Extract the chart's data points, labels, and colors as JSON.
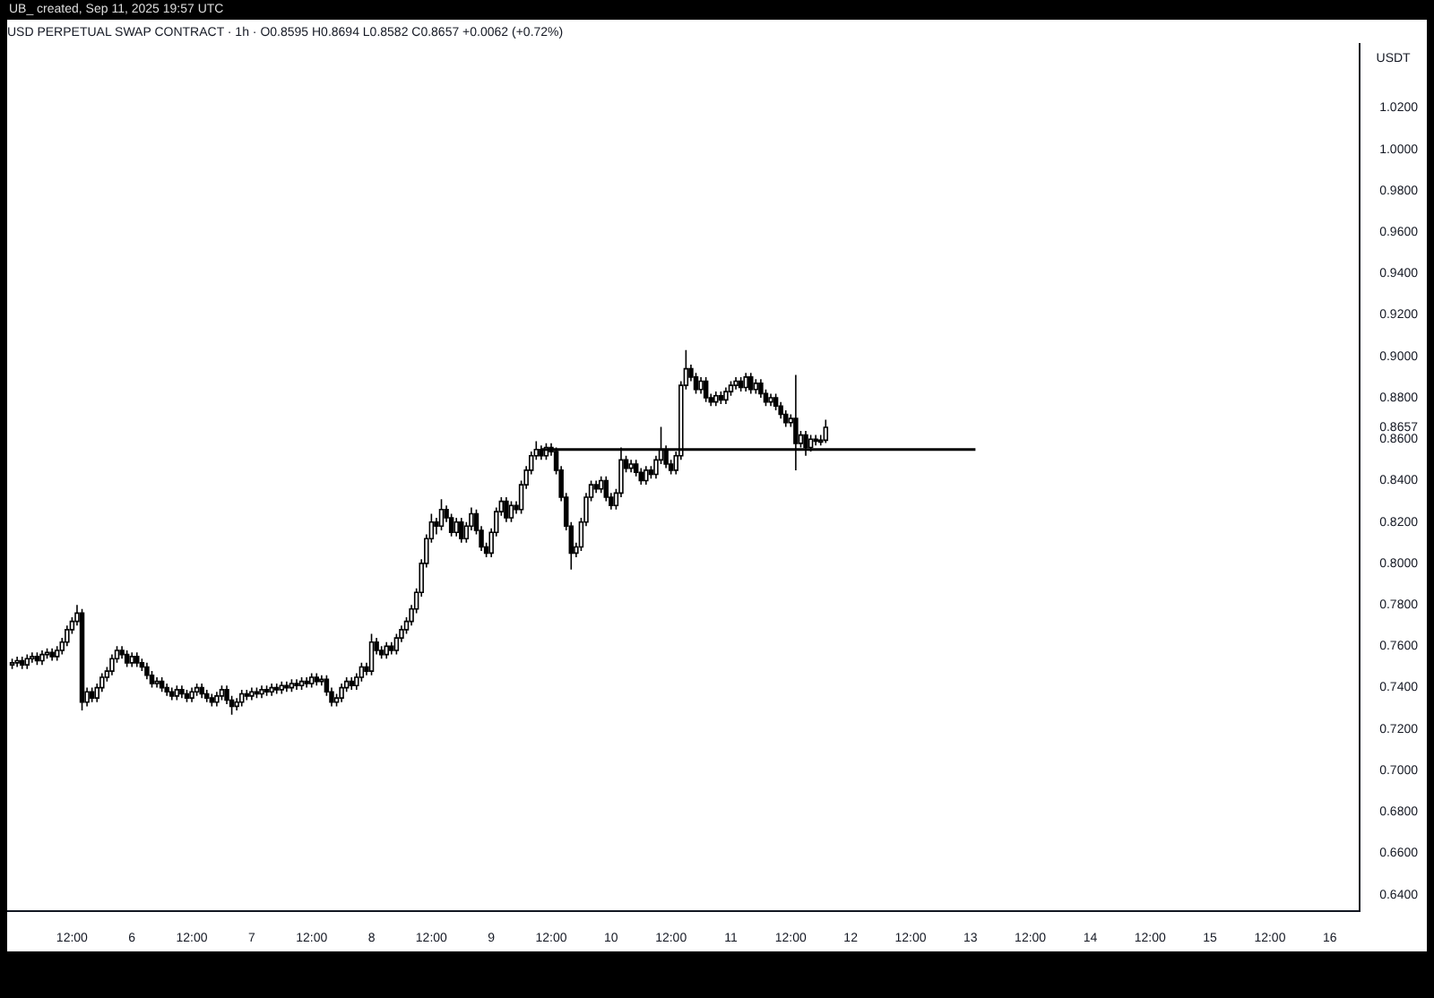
{
  "chart_data": {
    "type": "candlestick",
    "title": "USD PERPETUAL SWAP CONTRACT · 1h · O0.8595 H0.8694 L0.8582 C0.8657 +0.0062 (+0.72%)",
    "ylabel": "USDT",
    "annotations": [
      "UB_ created, Sep 11, 2025 19:57 UTC"
    ],
    "color": "#000000",
    "grid": false,
    "legend": false,
    "x": [
      "2025-09-05T00:00",
      "2025-09-05T01:00",
      "2025-09-05T02:00",
      "2025-09-05T03:00",
      "2025-09-05T04:00",
      "2025-09-05T05:00",
      "2025-09-05T06:00",
      "2025-09-05T07:00",
      "2025-09-05T08:00",
      "2025-09-05T09:00",
      "2025-09-05T10:00",
      "2025-09-05T11:00",
      "2025-09-05T12:00",
      "2025-09-05T13:00",
      "2025-09-05T14:00",
      "2025-09-05T15:00",
      "2025-09-05T16:00",
      "2025-09-05T17:00",
      "2025-09-05T18:00",
      "2025-09-05T19:00",
      "2025-09-05T20:00",
      "2025-09-05T21:00",
      "2025-09-05T22:00",
      "2025-09-05T23:00",
      "2025-09-06T00:00",
      "2025-09-06T01:00",
      "2025-09-06T02:00",
      "2025-09-06T03:00",
      "2025-09-06T04:00",
      "2025-09-06T05:00",
      "2025-09-06T06:00",
      "2025-09-06T07:00",
      "2025-09-06T08:00",
      "2025-09-06T09:00",
      "2025-09-06T10:00",
      "2025-09-06T11:00",
      "2025-09-06T12:00",
      "2025-09-06T13:00",
      "2025-09-06T14:00",
      "2025-09-06T15:00",
      "2025-09-06T16:00",
      "2025-09-06T17:00",
      "2025-09-06T18:00",
      "2025-09-06T19:00",
      "2025-09-06T20:00",
      "2025-09-06T21:00",
      "2025-09-06T22:00",
      "2025-09-06T23:00",
      "2025-09-07T00:00",
      "2025-09-07T01:00",
      "2025-09-07T02:00",
      "2025-09-07T03:00",
      "2025-09-07T04:00",
      "2025-09-07T05:00",
      "2025-09-07T06:00",
      "2025-09-07T07:00",
      "2025-09-07T08:00",
      "2025-09-07T09:00",
      "2025-09-07T10:00",
      "2025-09-07T11:00",
      "2025-09-07T12:00",
      "2025-09-07T13:00",
      "2025-09-07T14:00",
      "2025-09-07T15:00",
      "2025-09-07T16:00",
      "2025-09-07T17:00",
      "2025-09-07T18:00",
      "2025-09-07T19:00",
      "2025-09-07T20:00",
      "2025-09-07T21:00",
      "2025-09-07T22:00",
      "2025-09-07T23:00",
      "2025-09-08T00:00",
      "2025-09-08T01:00",
      "2025-09-08T02:00",
      "2025-09-08T03:00",
      "2025-09-08T04:00",
      "2025-09-08T05:00",
      "2025-09-08T06:00",
      "2025-09-08T07:00",
      "2025-09-08T08:00",
      "2025-09-08T09:00",
      "2025-09-08T10:00",
      "2025-09-08T11:00",
      "2025-09-08T12:00",
      "2025-09-08T13:00",
      "2025-09-08T14:00",
      "2025-09-08T15:00",
      "2025-09-08T16:00",
      "2025-09-08T17:00",
      "2025-09-08T18:00",
      "2025-09-08T19:00",
      "2025-09-08T20:00",
      "2025-09-08T21:00",
      "2025-09-08T22:00",
      "2025-09-08T23:00",
      "2025-09-09T00:00",
      "2025-09-09T01:00",
      "2025-09-09T02:00",
      "2025-09-09T03:00",
      "2025-09-09T04:00",
      "2025-09-09T05:00",
      "2025-09-09T06:00",
      "2025-09-09T07:00",
      "2025-09-09T08:00",
      "2025-09-09T09:00",
      "2025-09-09T10:00",
      "2025-09-09T11:00",
      "2025-09-09T12:00",
      "2025-09-09T13:00",
      "2025-09-09T14:00",
      "2025-09-09T15:00",
      "2025-09-09T16:00",
      "2025-09-09T17:00",
      "2025-09-09T18:00",
      "2025-09-09T19:00",
      "2025-09-09T20:00",
      "2025-09-09T21:00",
      "2025-09-09T22:00",
      "2025-09-09T23:00",
      "2025-09-10T00:00",
      "2025-09-10T01:00",
      "2025-09-10T02:00",
      "2025-09-10T03:00",
      "2025-09-10T04:00",
      "2025-09-10T05:00",
      "2025-09-10T06:00",
      "2025-09-10T07:00",
      "2025-09-10T08:00",
      "2025-09-10T09:00",
      "2025-09-10T10:00",
      "2025-09-10T11:00",
      "2025-09-10T12:00",
      "2025-09-10T13:00",
      "2025-09-10T14:00",
      "2025-09-10T15:00",
      "2025-09-10T16:00",
      "2025-09-10T17:00",
      "2025-09-10T18:00",
      "2025-09-10T19:00",
      "2025-09-10T20:00",
      "2025-09-10T21:00",
      "2025-09-10T22:00",
      "2025-09-10T23:00",
      "2025-09-11T00:00",
      "2025-09-11T01:00",
      "2025-09-11T02:00",
      "2025-09-11T03:00",
      "2025-09-11T04:00",
      "2025-09-11T05:00",
      "2025-09-11T06:00",
      "2025-09-11T07:00",
      "2025-09-11T08:00",
      "2025-09-11T09:00",
      "2025-09-11T10:00",
      "2025-09-11T11:00",
      "2025-09-11T12:00",
      "2025-09-11T13:00",
      "2025-09-11T14:00",
      "2025-09-11T15:00",
      "2025-09-11T16:00",
      "2025-09-11T17:00",
      "2025-09-11T18:00",
      "2025-09-11T19:00"
    ],
    "ohlc": [
      [
        0.751,
        0.754,
        0.749,
        0.752
      ],
      [
        0.752,
        0.755,
        0.75,
        0.753
      ],
      [
        0.753,
        0.755,
        0.749,
        0.751
      ],
      [
        0.751,
        0.756,
        0.749,
        0.754
      ],
      [
        0.754,
        0.757,
        0.752,
        0.755
      ],
      [
        0.755,
        0.757,
        0.751,
        0.753
      ],
      [
        0.753,
        0.758,
        0.751,
        0.756
      ],
      [
        0.756,
        0.759,
        0.754,
        0.757
      ],
      [
        0.757,
        0.759,
        0.753,
        0.755
      ],
      [
        0.755,
        0.76,
        0.753,
        0.758
      ],
      [
        0.758,
        0.764,
        0.756,
        0.762
      ],
      [
        0.762,
        0.77,
        0.76,
        0.768
      ],
      [
        0.768,
        0.774,
        0.766,
        0.772
      ],
      [
        0.772,
        0.78,
        0.77,
        0.776
      ],
      [
        0.776,
        0.778,
        0.729,
        0.733
      ],
      [
        0.733,
        0.74,
        0.731,
        0.738
      ],
      [
        0.738,
        0.74,
        0.733,
        0.735
      ],
      [
        0.735,
        0.742,
        0.733,
        0.74
      ],
      [
        0.74,
        0.747,
        0.738,
        0.745
      ],
      [
        0.745,
        0.75,
        0.743,
        0.748
      ],
      [
        0.748,
        0.756,
        0.746,
        0.754
      ],
      [
        0.754,
        0.76,
        0.752,
        0.758
      ],
      [
        0.758,
        0.76,
        0.754,
        0.756
      ],
      [
        0.756,
        0.758,
        0.75,
        0.752
      ],
      [
        0.752,
        0.757,
        0.75,
        0.755
      ],
      [
        0.755,
        0.757,
        0.75,
        0.752
      ],
      [
        0.752,
        0.754,
        0.748,
        0.75
      ],
      [
        0.75,
        0.752,
        0.744,
        0.746
      ],
      [
        0.746,
        0.748,
        0.74,
        0.742
      ],
      [
        0.742,
        0.745,
        0.74,
        0.743
      ],
      [
        0.743,
        0.745,
        0.738,
        0.74
      ],
      [
        0.74,
        0.742,
        0.736,
        0.738
      ],
      [
        0.738,
        0.74,
        0.734,
        0.736
      ],
      [
        0.736,
        0.741,
        0.734,
        0.739
      ],
      [
        0.739,
        0.741,
        0.735,
        0.737
      ],
      [
        0.737,
        0.739,
        0.733,
        0.735
      ],
      [
        0.735,
        0.74,
        0.733,
        0.738
      ],
      [
        0.738,
        0.742,
        0.736,
        0.74
      ],
      [
        0.74,
        0.742,
        0.735,
        0.737
      ],
      [
        0.737,
        0.739,
        0.733,
        0.735
      ],
      [
        0.735,
        0.737,
        0.731,
        0.733
      ],
      [
        0.733,
        0.738,
        0.731,
        0.736
      ],
      [
        0.736,
        0.741,
        0.734,
        0.739
      ],
      [
        0.739,
        0.741,
        0.732,
        0.734
      ],
      [
        0.734,
        0.736,
        0.727,
        0.731
      ],
      [
        0.731,
        0.735,
        0.729,
        0.733
      ],
      [
        0.733,
        0.739,
        0.731,
        0.737
      ],
      [
        0.737,
        0.739,
        0.734,
        0.736
      ],
      [
        0.736,
        0.74,
        0.734,
        0.738
      ],
      [
        0.738,
        0.74,
        0.735,
        0.737
      ],
      [
        0.737,
        0.741,
        0.735,
        0.739
      ],
      [
        0.739,
        0.741,
        0.736,
        0.738
      ],
      [
        0.738,
        0.742,
        0.736,
        0.74
      ],
      [
        0.74,
        0.742,
        0.737,
        0.739
      ],
      [
        0.739,
        0.743,
        0.737,
        0.741
      ],
      [
        0.741,
        0.743,
        0.738,
        0.74
      ],
      [
        0.74,
        0.744,
        0.738,
        0.742
      ],
      [
        0.742,
        0.744,
        0.739,
        0.741
      ],
      [
        0.741,
        0.745,
        0.739,
        0.743
      ],
      [
        0.743,
        0.745,
        0.74,
        0.742
      ],
      [
        0.742,
        0.747,
        0.74,
        0.745
      ],
      [
        0.745,
        0.747,
        0.741,
        0.743
      ],
      [
        0.743,
        0.746,
        0.741,
        0.744
      ],
      [
        0.744,
        0.746,
        0.736,
        0.738
      ],
      [
        0.738,
        0.74,
        0.731,
        0.733
      ],
      [
        0.733,
        0.737,
        0.731,
        0.735
      ],
      [
        0.735,
        0.742,
        0.733,
        0.74
      ],
      [
        0.74,
        0.745,
        0.738,
        0.743
      ],
      [
        0.743,
        0.745,
        0.739,
        0.741
      ],
      [
        0.741,
        0.747,
        0.739,
        0.745
      ],
      [
        0.745,
        0.752,
        0.743,
        0.75
      ],
      [
        0.75,
        0.752,
        0.746,
        0.748
      ],
      [
        0.748,
        0.766,
        0.746,
        0.762
      ],
      [
        0.762,
        0.764,
        0.756,
        0.758
      ],
      [
        0.758,
        0.76,
        0.754,
        0.756
      ],
      [
        0.756,
        0.762,
        0.754,
        0.76
      ],
      [
        0.76,
        0.762,
        0.756,
        0.758
      ],
      [
        0.758,
        0.766,
        0.756,
        0.764
      ],
      [
        0.764,
        0.77,
        0.762,
        0.768
      ],
      [
        0.768,
        0.774,
        0.766,
        0.772
      ],
      [
        0.772,
        0.78,
        0.77,
        0.778
      ],
      [
        0.778,
        0.788,
        0.776,
        0.786
      ],
      [
        0.786,
        0.802,
        0.784,
        0.8
      ],
      [
        0.8,
        0.814,
        0.798,
        0.812
      ],
      [
        0.812,
        0.824,
        0.81,
        0.82
      ],
      [
        0.82,
        0.822,
        0.814,
        0.818
      ],
      [
        0.818,
        0.831,
        0.816,
        0.826
      ],
      [
        0.826,
        0.828,
        0.82,
        0.822
      ],
      [
        0.822,
        0.824,
        0.813,
        0.815
      ],
      [
        0.815,
        0.822,
        0.813,
        0.82
      ],
      [
        0.82,
        0.822,
        0.81,
        0.812
      ],
      [
        0.812,
        0.82,
        0.81,
        0.818
      ],
      [
        0.818,
        0.827,
        0.816,
        0.824
      ],
      [
        0.824,
        0.826,
        0.814,
        0.816
      ],
      [
        0.816,
        0.818,
        0.806,
        0.808
      ],
      [
        0.808,
        0.81,
        0.803,
        0.805
      ],
      [
        0.805,
        0.817,
        0.803,
        0.815
      ],
      [
        0.815,
        0.827,
        0.813,
        0.825
      ],
      [
        0.825,
        0.832,
        0.823,
        0.83
      ],
      [
        0.83,
        0.832,
        0.82,
        0.822
      ],
      [
        0.822,
        0.83,
        0.82,
        0.828
      ],
      [
        0.828,
        0.83,
        0.824,
        0.826
      ],
      [
        0.826,
        0.84,
        0.824,
        0.838
      ],
      [
        0.838,
        0.847,
        0.836,
        0.845
      ],
      [
        0.845,
        0.854,
        0.843,
        0.852
      ],
      [
        0.852,
        0.859,
        0.85,
        0.855
      ],
      [
        0.855,
        0.857,
        0.85,
        0.852
      ],
      [
        0.852,
        0.858,
        0.85,
        0.856
      ],
      [
        0.856,
        0.858,
        0.852,
        0.854
      ],
      [
        0.854,
        0.856,
        0.843,
        0.845
      ],
      [
        0.845,
        0.847,
        0.83,
        0.832
      ],
      [
        0.832,
        0.834,
        0.816,
        0.818
      ],
      [
        0.818,
        0.82,
        0.797,
        0.805
      ],
      [
        0.805,
        0.81,
        0.803,
        0.808
      ],
      [
        0.808,
        0.822,
        0.806,
        0.82
      ],
      [
        0.82,
        0.834,
        0.818,
        0.832
      ],
      [
        0.832,
        0.84,
        0.83,
        0.838
      ],
      [
        0.838,
        0.84,
        0.834,
        0.836
      ],
      [
        0.836,
        0.842,
        0.834,
        0.84
      ],
      [
        0.84,
        0.842,
        0.83,
        0.832
      ],
      [
        0.832,
        0.834,
        0.826,
        0.828
      ],
      [
        0.828,
        0.836,
        0.826,
        0.834
      ],
      [
        0.834,
        0.856,
        0.832,
        0.85
      ],
      [
        0.85,
        0.852,
        0.844,
        0.846
      ],
      [
        0.846,
        0.85,
        0.844,
        0.848
      ],
      [
        0.848,
        0.85,
        0.842,
        0.844
      ],
      [
        0.844,
        0.846,
        0.838,
        0.84
      ],
      [
        0.84,
        0.847,
        0.838,
        0.845
      ],
      [
        0.845,
        0.847,
        0.841,
        0.843
      ],
      [
        0.843,
        0.852,
        0.841,
        0.85
      ],
      [
        0.85,
        0.866,
        0.848,
        0.855
      ],
      [
        0.855,
        0.857,
        0.846,
        0.848
      ],
      [
        0.848,
        0.85,
        0.843,
        0.845
      ],
      [
        0.845,
        0.854,
        0.843,
        0.852
      ],
      [
        0.852,
        0.888,
        0.85,
        0.886
      ],
      [
        0.886,
        0.903,
        0.884,
        0.894
      ],
      [
        0.894,
        0.896,
        0.888,
        0.89
      ],
      [
        0.89,
        0.892,
        0.882,
        0.884
      ],
      [
        0.884,
        0.89,
        0.882,
        0.888
      ],
      [
        0.888,
        0.89,
        0.878,
        0.88
      ],
      [
        0.88,
        0.882,
        0.876,
        0.878
      ],
      [
        0.878,
        0.883,
        0.876,
        0.881
      ],
      [
        0.881,
        0.883,
        0.877,
        0.879
      ],
      [
        0.879,
        0.885,
        0.877,
        0.883
      ],
      [
        0.883,
        0.888,
        0.881,
        0.886
      ],
      [
        0.886,
        0.89,
        0.884,
        0.888
      ],
      [
        0.888,
        0.89,
        0.883,
        0.885
      ],
      [
        0.885,
        0.892,
        0.883,
        0.89
      ],
      [
        0.89,
        0.892,
        0.882,
        0.884
      ],
      [
        0.884,
        0.889,
        0.882,
        0.887
      ],
      [
        0.887,
        0.889,
        0.88,
        0.882
      ],
      [
        0.882,
        0.884,
        0.876,
        0.878
      ],
      [
        0.878,
        0.882,
        0.876,
        0.88
      ],
      [
        0.88,
        0.882,
        0.874,
        0.876
      ],
      [
        0.876,
        0.878,
        0.87,
        0.872
      ],
      [
        0.872,
        0.874,
        0.866,
        0.868
      ],
      [
        0.868,
        0.872,
        0.866,
        0.87
      ],
      [
        0.87,
        0.891,
        0.845,
        0.858
      ],
      [
        0.858,
        0.864,
        0.856,
        0.862
      ],
      [
        0.862,
        0.864,
        0.852,
        0.856
      ],
      [
        0.856,
        0.862,
        0.854,
        0.86
      ],
      [
        0.86,
        0.862,
        0.857,
        0.859
      ],
      [
        0.859,
        0.862,
        0.857,
        0.8595
      ],
      [
        0.8595,
        0.8694,
        0.8582,
        0.8657
      ]
    ],
    "series": [
      {
        "type": "line",
        "x": [
          "2025-09-09T10:00",
          "2025-09-13T01:00"
        ],
        "values": [
          0.855,
          0.855
        ],
        "color": "#000000"
      }
    ],
    "xlim": [
      "2025-09-04T23:00",
      "2025-09-16T06:00"
    ],
    "xticks": [
      {
        "value": "2025-09-05T12:00",
        "label": "12:00"
      },
      {
        "value": "2025-09-06",
        "label": "6"
      },
      {
        "value": "2025-09-06T12:00",
        "label": "12:00"
      },
      {
        "value": "2025-09-07",
        "label": "7"
      },
      {
        "value": "2025-09-07T12:00",
        "label": "12:00"
      },
      {
        "value": "2025-09-08",
        "label": "8"
      },
      {
        "value": "2025-09-08T12:00",
        "label": "12:00"
      },
      {
        "value": "2025-09-09",
        "label": "9"
      },
      {
        "value": "2025-09-09T12:00",
        "label": "12:00"
      },
      {
        "value": "2025-09-10",
        "label": "10"
      },
      {
        "value": "2025-09-10T12:00",
        "label": "12:00"
      },
      {
        "value": "2025-09-11",
        "label": "11"
      },
      {
        "value": "2025-09-11T12:00",
        "label": "12:00"
      },
      {
        "value": "2025-09-12",
        "label": "12"
      },
      {
        "value": "2025-09-12T12:00",
        "label": "12:00"
      },
      {
        "value": "2025-09-13",
        "label": "13"
      },
      {
        "value": "2025-09-13T12:00",
        "label": "12:00"
      },
      {
        "value": "2025-09-14",
        "label": "14"
      },
      {
        "value": "2025-09-14T12:00",
        "label": "12:00"
      },
      {
        "value": "2025-09-15",
        "label": "15"
      },
      {
        "value": "2025-09-15T12:00",
        "label": "12:00"
      },
      {
        "value": "2025-09-16",
        "label": "16"
      }
    ],
    "ylim": [
      0.632,
      1.051
    ],
    "yticks": [
      {
        "value": 0.64,
        "label": "0.6400"
      },
      {
        "value": 0.66,
        "label": "0.6600"
      },
      {
        "value": 0.68,
        "label": "0.6800"
      },
      {
        "value": 0.7,
        "label": "0.7000"
      },
      {
        "value": 0.72,
        "label": "0.7200"
      },
      {
        "value": 0.74,
        "label": "0.7400"
      },
      {
        "value": 0.76,
        "label": "0.7600"
      },
      {
        "value": 0.78,
        "label": "0.7800"
      },
      {
        "value": 0.8,
        "label": "0.8000"
      },
      {
        "value": 0.82,
        "label": "0.8200"
      },
      {
        "value": 0.84,
        "label": "0.8400"
      },
      {
        "value": 0.86,
        "label": "0.8600"
      },
      {
        "value": 0.8657,
        "label": "0.8657"
      },
      {
        "value": 0.88,
        "label": "0.8800"
      },
      {
        "value": 0.9,
        "label": "0.9000"
      },
      {
        "value": 0.92,
        "label": "0.9200"
      },
      {
        "value": 0.94,
        "label": "0.9400"
      },
      {
        "value": 0.96,
        "label": "0.9600"
      },
      {
        "value": 0.98,
        "label": "0.9800"
      },
      {
        "value": 1.0,
        "label": "1.0000"
      },
      {
        "value": 1.02,
        "label": "1.0200"
      }
    ]
  }
}
